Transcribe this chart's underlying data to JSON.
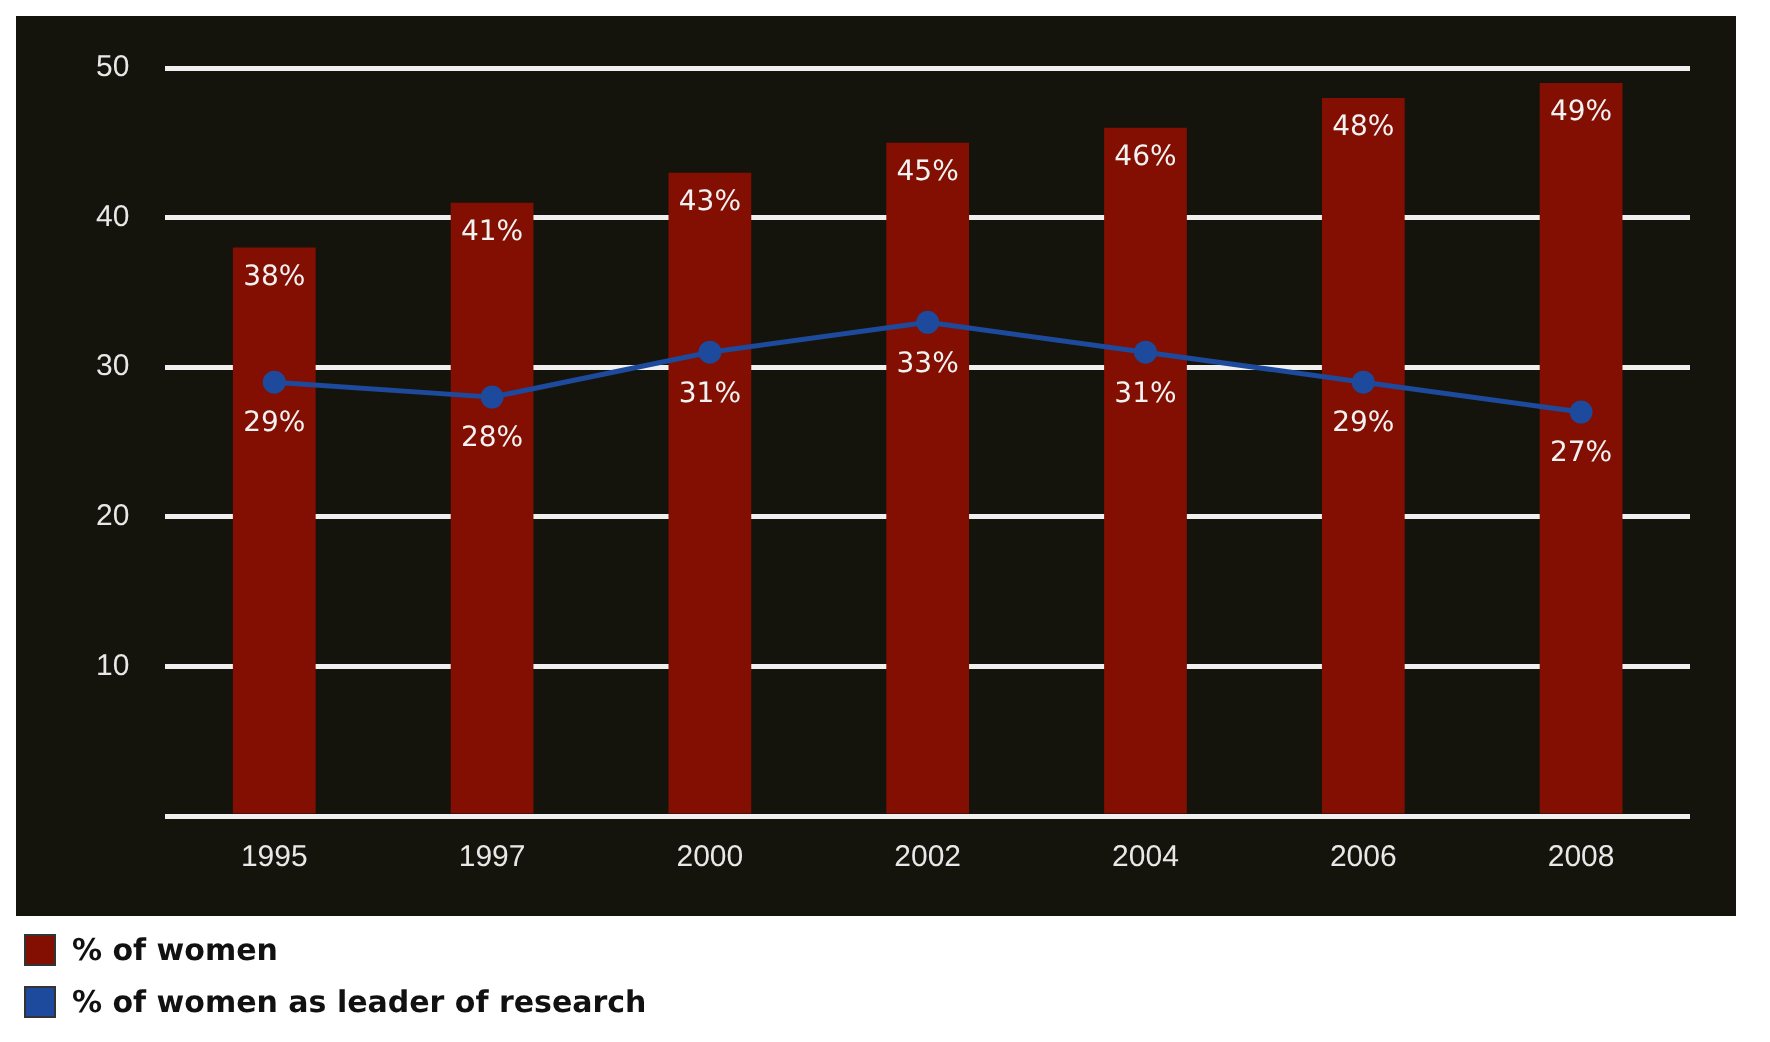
{
  "chart_data": {
    "type": "bar",
    "categories": [
      "1995",
      "1997",
      "2000",
      "2002",
      "2004",
      "2006",
      "2008"
    ],
    "series": [
      {
        "name": "% of women",
        "color": "#820f02",
        "values": [
          38,
          41,
          43,
          45,
          46,
          48,
          49
        ],
        "value_labels": [
          "38%",
          "41%",
          "43%",
          "45%",
          "46%",
          "48%",
          "49%"
        ]
      },
      {
        "name": "% of women as leader of research",
        "type": "line",
        "color": "#1d4a9c",
        "values": [
          29,
          28,
          31,
          33,
          31,
          29,
          27
        ],
        "value_labels": [
          "29%",
          "28%",
          "31%",
          "33%",
          "31%",
          "29%",
          "27%"
        ]
      }
    ],
    "ylim": [
      0,
      50
    ],
    "yticks": [
      {
        "value": 0,
        "label": null
      },
      10,
      20,
      30,
      40,
      50
    ],
    "grid": "y",
    "legend": "bottom left",
    "marker": "circle",
    "line_style": "solid"
  }
}
